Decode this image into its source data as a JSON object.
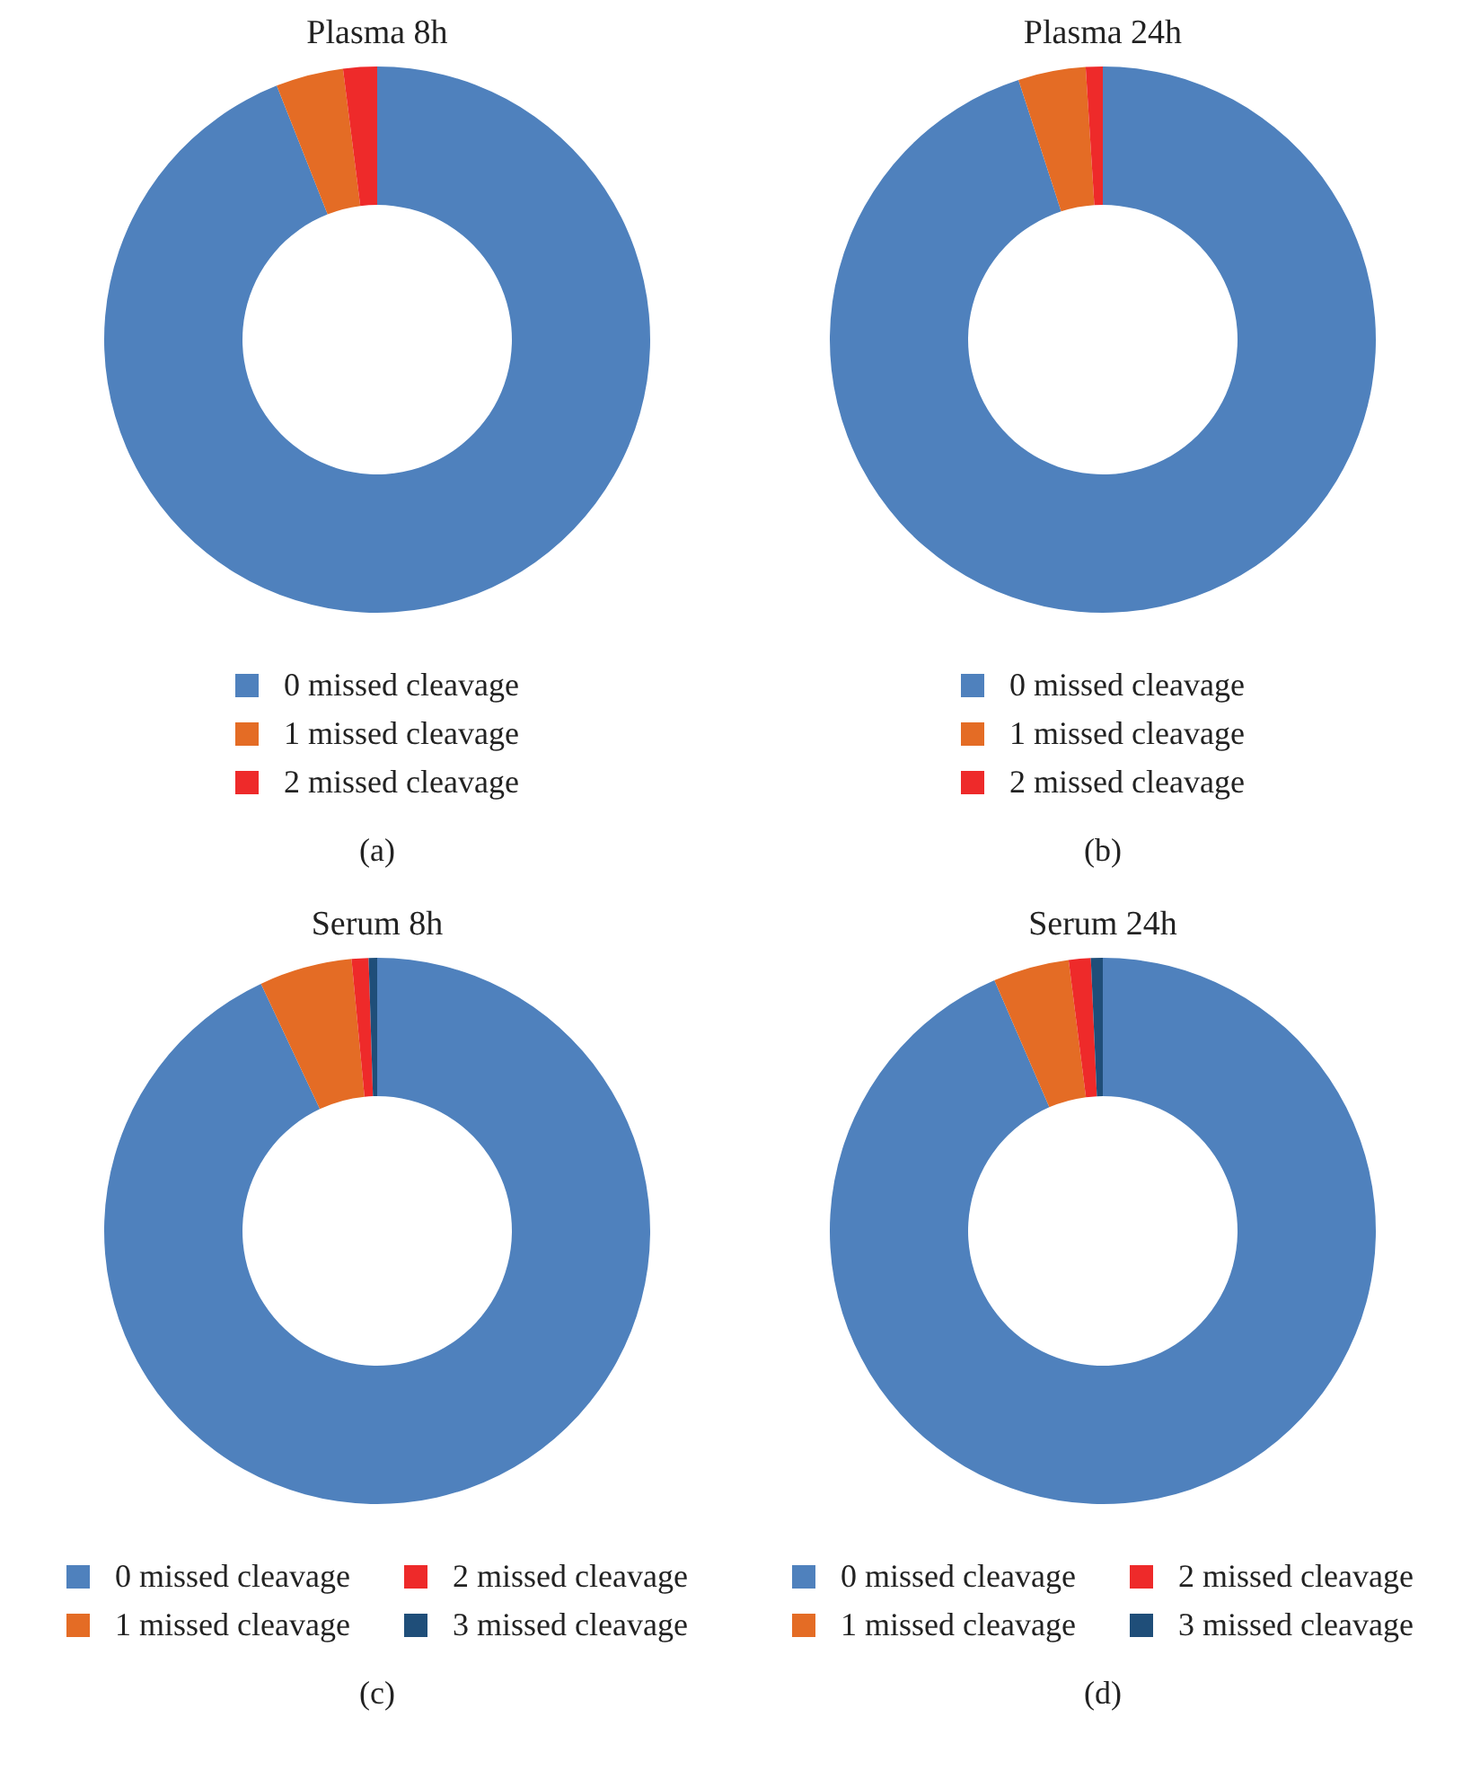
{
  "chart_data": [
    {
      "type": "donut",
      "title": "Plasma 8h",
      "categories": [
        "0 missed cleavage",
        "1 missed cleavage",
        "2 missed cleavage"
      ],
      "values": [
        94,
        4,
        2
      ],
      "colors": [
        "#4f81bd",
        "#e46c25",
        "#ee2a2a"
      ],
      "legend": "bottom",
      "annotations": [
        "(a)"
      ]
    },
    {
      "type": "donut",
      "title": "Plasma 24h",
      "categories": [
        "0 missed cleavage",
        "1 missed cleavage",
        "2 missed cleavage"
      ],
      "values": [
        95,
        4,
        1
      ],
      "colors": [
        "#4f81bd",
        "#e46c25",
        "#ee2a2a"
      ],
      "legend": "bottom",
      "annotations": [
        "(b)"
      ]
    },
    {
      "type": "donut",
      "title": "Serum 8h",
      "categories": [
        "0 missed cleavage",
        "1 missed cleavage",
        "2 missed cleavage",
        "3 missed cleavage"
      ],
      "values": [
        93,
        5.5,
        1,
        0.5
      ],
      "colors": [
        "#4f81bd",
        "#e46c25",
        "#ee2a2a",
        "#1f4e79"
      ],
      "legend": "bottom",
      "annotations": [
        "(c)"
      ]
    },
    {
      "type": "donut",
      "title": "Serum 24h",
      "categories": [
        "0 missed cleavage",
        "1 missed cleavage",
        "2 missed cleavage",
        "3 missed cleavage"
      ],
      "values": [
        93.5,
        4.5,
        1.3,
        0.7
      ],
      "colors": [
        "#4f81bd",
        "#e46c25",
        "#ee2a2a",
        "#1f4e79"
      ],
      "legend": "bottom",
      "annotations": [
        "(d)"
      ]
    }
  ]
}
